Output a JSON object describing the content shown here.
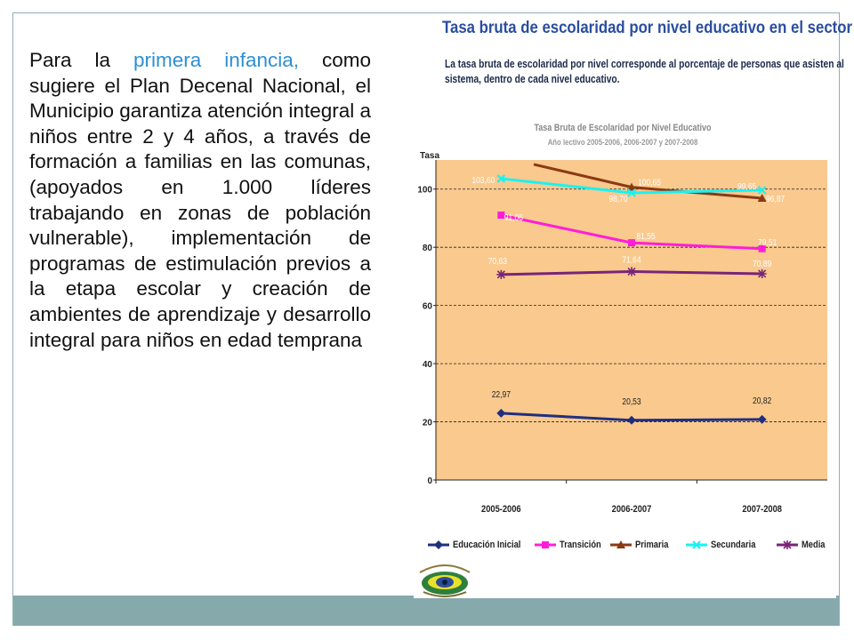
{
  "slide_text": {
    "before": "Para la ",
    "highlight": "primera infancia,",
    "after": " como sugiere el Plan Decenal Nacional, el Municipio garantiza atención integral a niños entre 2 y 4 años, a través de formación a familias en las comunas, (apoyados en 1.000 líderes trabajando en zonas de población vulnerable), implementación de programas de estimulación previos a la etapa escolar y creación de ambientes de aprendizaje y desarrollo integral para niños en edad temprana"
  },
  "header": {
    "title": "Tasa bruta de escolaridad por nivel educativo en el sector",
    "subtitle_line1": "La tasa bruta de escolaridad por nivel corresponde al porcentaje de personas que asisten al",
    "subtitle_line2": "sistema, dentro de cada nivel educativo."
  },
  "colors": {
    "accent_text": "#2e8fd3",
    "plot_bg": "#f9c98e",
    "bottom_band": "#86a9ac"
  },
  "chart_data": {
    "type": "line",
    "title": "Tasa Bruta de Escolaridad por Nivel Educativo",
    "subtitle": "Año lectivo 2005-2006, 2006-2007 y 2007-2008",
    "ylabel": "Tasa",
    "xlabel": "",
    "categories": [
      "2005-2006",
      "2006-2007",
      "2007-2008"
    ],
    "ylim": [
      0,
      110
    ],
    "yticks": [
      0,
      20,
      40,
      60,
      80,
      100
    ],
    "grid": true,
    "legend_position": "bottom",
    "series": [
      {
        "name": "Educación Inicial",
        "values": [
          22.97,
          20.53,
          20.82
        ],
        "labels": [
          "22,97",
          "20,53",
          "20,82"
        ],
        "color": "#1f2f80",
        "marker": "diamond"
      },
      {
        "name": "Transición",
        "values": [
          91.06,
          81.55,
          79.51
        ],
        "labels": [
          "91,06",
          "81,55",
          "79,51"
        ],
        "color": "#ff1ed8",
        "marker": "square"
      },
      {
        "name": "Primaria",
        "values": [
          108.5,
          100.65,
          96.87
        ],
        "labels": [
          "",
          "100,65",
          "96,87"
        ],
        "color": "#8b3a13",
        "marker": "triangle"
      },
      {
        "name": "Secundaria",
        "values": [
          103.6,
          98.7,
          99.65
        ],
        "labels": [
          "103,60",
          "98,70",
          "99,65"
        ],
        "color": "#19f2f2",
        "marker": "x"
      },
      {
        "name": "Media",
        "values": [
          70.63,
          71.64,
          70.89
        ],
        "labels": [
          "70,63",
          "71,64",
          "70,89"
        ],
        "color": "#7a2478",
        "marker": "star"
      }
    ]
  }
}
